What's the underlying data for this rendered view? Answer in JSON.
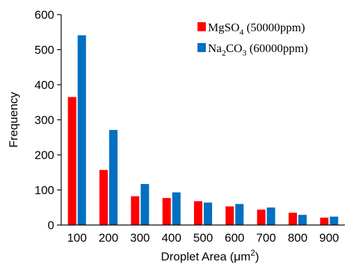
{
  "chart_data": {
    "type": "bar",
    "categories": [
      "100",
      "200",
      "300",
      "400",
      "500",
      "600",
      "700",
      "800",
      "900"
    ],
    "series": [
      {
        "name_parts": [
          "MgSO",
          "4",
          " (50000ppm)"
        ],
        "color": "#ff0000",
        "values": [
          365,
          157,
          82,
          77,
          68,
          53,
          44,
          35,
          21
        ]
      },
      {
        "name_parts": [
          "Na",
          "2",
          "CO",
          "3",
          " (60000ppm)"
        ],
        "color": "#0070c0",
        "values": [
          541,
          271,
          117,
          93,
          64,
          60,
          50,
          29,
          24
        ]
      }
    ],
    "title": "",
    "xlabel_parts": [
      "Droplet Area (μm",
      "2",
      ")"
    ],
    "ylabel": "Frequency",
    "ylim": [
      0,
      600
    ],
    "yticks": [
      0,
      100,
      200,
      300,
      400,
      500,
      600
    ],
    "grid": false,
    "legend_position": "top-right"
  }
}
